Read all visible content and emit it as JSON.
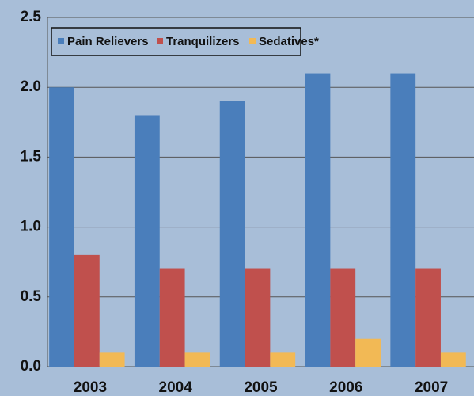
{
  "chart_data": {
    "type": "bar",
    "categories": [
      "2003",
      "2004",
      "2005",
      "2006",
      "2007"
    ],
    "series": [
      {
        "name": "Pain Relievers",
        "color": "#4a7ebb",
        "values": [
          2.0,
          1.8,
          1.9,
          2.1,
          2.1
        ]
      },
      {
        "name": "Tranquilizers",
        "color": "#c0504d",
        "values": [
          0.8,
          0.7,
          0.7,
          0.7,
          0.7
        ]
      },
      {
        "name": "Sedatives*",
        "color": "#f2b955",
        "values": [
          0.1,
          0.1,
          0.1,
          0.2,
          0.1
        ]
      }
    ],
    "ylim": [
      0,
      2.5
    ],
    "yticks": [
      {
        "value": 0,
        "label": "0.0"
      },
      0.5,
      {
        "value": 1,
        "label": "1.0"
      },
      1.5,
      {
        "value": 2,
        "label": "2.0"
      },
      2.5
    ],
    "grid": true,
    "legend": "top-left"
  }
}
